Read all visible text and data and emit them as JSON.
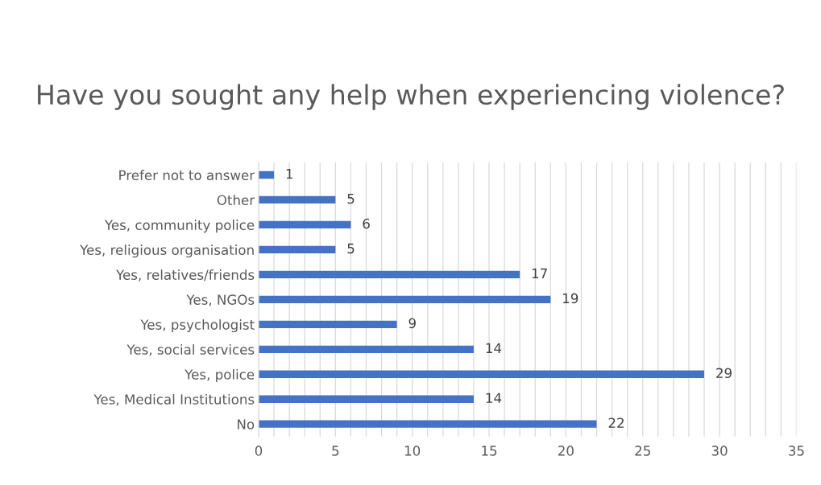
{
  "chart_data": {
    "type": "bar",
    "orientation": "horizontal",
    "title": "Have you sought any help when experiencing violence?",
    "categories": [
      "Prefer not to answer",
      "Other",
      "Yes, community police",
      "Yes, religious organisation",
      "Yes, relatives/friends",
      "Yes, NGOs",
      "Yes, psychologist",
      "Yes, social services",
      "Yes, police",
      "Yes, Medical Institutions",
      "No"
    ],
    "values": [
      1,
      5,
      6,
      5,
      17,
      19,
      9,
      14,
      29,
      14,
      22
    ],
    "color": "#4472c4",
    "data_labels": true,
    "grid": "x",
    "xlim": [
      0,
      35
    ],
    "xticks": [
      0,
      {
        "value": 1,
        "label": null
      },
      {
        "value": 2,
        "label": null
      },
      {
        "value": 3,
        "label": null
      },
      {
        "value": 4,
        "label": null
      },
      5,
      {
        "value": 6,
        "label": null
      },
      {
        "value": 7,
        "label": null
      },
      {
        "value": 8,
        "label": null
      },
      {
        "value": 9,
        "label": null
      },
      10,
      {
        "value": 11,
        "label": null
      },
      {
        "value": 12,
        "label": null
      },
      {
        "value": 13,
        "label": null
      },
      {
        "value": 14,
        "label": null
      },
      15,
      {
        "value": 16,
        "label": null
      },
      {
        "value": 17,
        "label": null
      },
      {
        "value": 18,
        "label": null
      },
      {
        "value": 19,
        "label": null
      },
      20,
      {
        "value": 21,
        "label": null
      },
      {
        "value": 22,
        "label": null
      },
      {
        "value": 23,
        "label": null
      },
      {
        "value": 24,
        "label": null
      },
      25,
      {
        "value": 26,
        "label": null
      },
      {
        "value": 27,
        "label": null
      },
      {
        "value": 28,
        "label": null
      },
      {
        "value": 29,
        "label": null
      },
      30,
      {
        "value": 31,
        "label": null
      },
      {
        "value": 32,
        "label": null
      },
      {
        "value": 33,
        "label": null
      },
      {
        "value": 34,
        "label": null
      },
      35
    ]
  }
}
